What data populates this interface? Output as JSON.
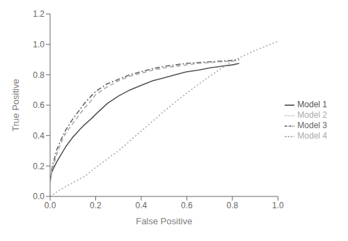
{
  "chart_data": {
    "type": "line",
    "xlabel": "False Positive",
    "ylabel": "True Positive",
    "xlim": [
      0.0,
      1.0
    ],
    "ylim": [
      0.0,
      1.2
    ],
    "xticks": [
      {
        "value": 0.0,
        "label": "0.0"
      },
      0.2,
      0.4,
      0.6,
      0.8,
      {
        "value": 1.0,
        "label": "1.0"
      }
    ],
    "yticks": [
      {
        "value": 0.0,
        "label": "0.0"
      },
      0.2,
      0.4,
      0.6,
      0.8,
      {
        "value": 1.0,
        "label": "1.0"
      },
      1.2
    ],
    "legend": "right",
    "series": [
      {
        "name": "Model 1",
        "color": "#555555",
        "line_style": "solid",
        "x": [
          0.0,
          0.01,
          0.03,
          0.05,
          0.07,
          0.1,
          0.13,
          0.15,
          0.18,
          0.2,
          0.25,
          0.3,
          0.35,
          0.4,
          0.45,
          0.5,
          0.55,
          0.6,
          0.65,
          0.7,
          0.75,
          0.8,
          0.83
        ],
        "values": [
          0.12,
          0.17,
          0.23,
          0.28,
          0.33,
          0.39,
          0.44,
          0.47,
          0.51,
          0.54,
          0.61,
          0.66,
          0.7,
          0.73,
          0.76,
          0.78,
          0.8,
          0.82,
          0.83,
          0.845,
          0.855,
          0.865,
          0.875
        ]
      },
      {
        "name": "Model 2",
        "color": "#aaaaaa",
        "line_style": "dotted",
        "x": [
          0.0,
          0.02,
          0.05,
          0.1,
          0.15,
          0.2,
          0.3,
          0.4,
          0.5,
          0.6,
          0.7,
          0.8,
          0.9,
          1.0
        ],
        "values": [
          0.0,
          0.02,
          0.05,
          0.09,
          0.13,
          0.19,
          0.3,
          0.43,
          0.56,
          0.68,
          0.79,
          0.89,
          0.96,
          1.02
        ]
      },
      {
        "name": "Model 3",
        "color": "#666666",
        "line_style": "dashdot",
        "x": [
          0.0,
          0.01,
          0.03,
          0.05,
          0.07,
          0.1,
          0.13,
          0.15,
          0.18,
          0.2,
          0.25,
          0.3,
          0.35,
          0.4,
          0.45,
          0.5,
          0.55,
          0.6,
          0.65,
          0.7,
          0.75,
          0.8,
          0.83
        ],
        "values": [
          0.1,
          0.2,
          0.31,
          0.38,
          0.44,
          0.51,
          0.57,
          0.61,
          0.66,
          0.69,
          0.74,
          0.77,
          0.8,
          0.82,
          0.84,
          0.855,
          0.865,
          0.875,
          0.88,
          0.885,
          0.89,
          0.895,
          0.9
        ]
      },
      {
        "name": "Model 4",
        "color": "#aaaaaa",
        "line_style": "dashed",
        "x": [
          0.0,
          0.01,
          0.03,
          0.05,
          0.07,
          0.1,
          0.13,
          0.15,
          0.18,
          0.2,
          0.25,
          0.3,
          0.35,
          0.4,
          0.45,
          0.5,
          0.55,
          0.6,
          0.65,
          0.7,
          0.75,
          0.8,
          0.83
        ],
        "values": [
          0.09,
          0.18,
          0.28,
          0.36,
          0.42,
          0.48,
          0.54,
          0.58,
          0.63,
          0.67,
          0.72,
          0.76,
          0.79,
          0.81,
          0.83,
          0.845,
          0.855,
          0.865,
          0.875,
          0.88,
          0.885,
          0.89,
          0.895
        ]
      }
    ]
  }
}
